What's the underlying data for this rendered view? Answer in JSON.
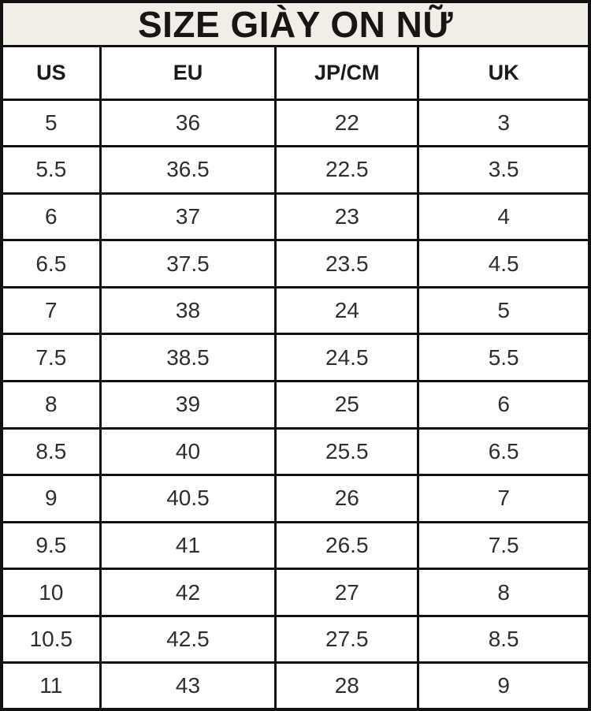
{
  "title": "SIZE GIÀY ON NỮ",
  "colors": {
    "title_bg": "#f1eee8",
    "cell_bg": "#ffffff",
    "border": "#111111",
    "title_text": "#181513",
    "cell_text": "#2e2e2e"
  },
  "table": {
    "headers": [
      "US",
      "EU",
      "JP/CM",
      "UK"
    ],
    "header_keys": [
      "us",
      "eu",
      "jp-cm",
      "uk"
    ],
    "rows": [
      [
        "5",
        "36",
        "22",
        "3"
      ],
      [
        "5.5",
        "36.5",
        "22.5",
        "3.5"
      ],
      [
        "6",
        "37",
        "23",
        "4"
      ],
      [
        "6.5",
        "37.5",
        "23.5",
        "4.5"
      ],
      [
        "7",
        "38",
        "24",
        "5"
      ],
      [
        "7.5",
        "38.5",
        "24.5",
        "5.5"
      ],
      [
        "8",
        "39",
        "25",
        "6"
      ],
      [
        "8.5",
        "40",
        "25.5",
        "6.5"
      ],
      [
        "9",
        "40.5",
        "26",
        "7"
      ],
      [
        "9.5",
        "41",
        "26.5",
        "7.5"
      ],
      [
        "10",
        "42",
        "27",
        "8"
      ],
      [
        "10.5",
        "42.5",
        "27.5",
        "8.5"
      ],
      [
        "11",
        "43",
        "28",
        "9"
      ]
    ]
  }
}
